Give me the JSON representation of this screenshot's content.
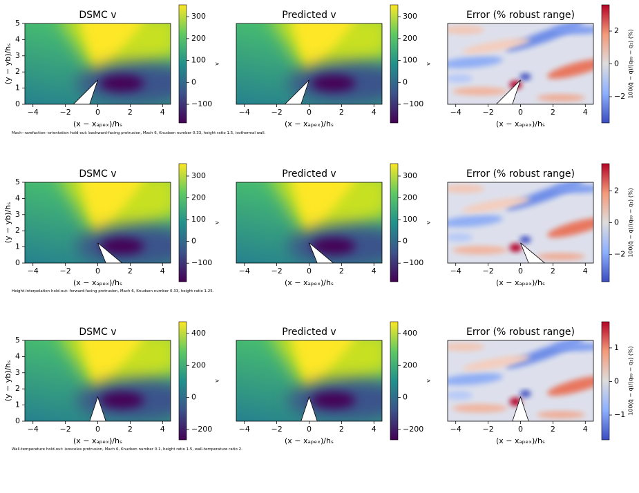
{
  "chart_data": [
    {
      "type": "heatmap",
      "title": "DSMC v",
      "xlabel": "(x − xₐₚₑₓ)/hₛ",
      "ylabel": "(y − yb)/hₛ",
      "xlim": [
        -4.5,
        4.5
      ],
      "xticks": [
        {
          "value": -4,
          "label": "−4"
        },
        {
          "value": -2,
          "label": "−2"
        },
        0,
        2,
        4
      ],
      "ylim": [
        0,
        5
      ],
      "yticks": [
        0,
        1,
        2,
        3,
        4,
        5
      ],
      "cmap": "viridis",
      "clim": [
        -185,
        354
      ],
      "cticks": [
        {
          "value": -100,
          "label": "−100"
        },
        0,
        100,
        200,
        300
      ],
      "clabel": "v"
    },
    {
      "type": "heatmap",
      "title": "Predicted v",
      "xlabel": "(x − xₐₚₑₓ)/hₛ",
      "xlim": [
        -4.5,
        4.5
      ],
      "xticks": [
        {
          "value": -4,
          "label": "−4"
        },
        {
          "value": -2,
          "label": "−2"
        },
        0,
        2,
        4
      ],
      "ylim": [
        0,
        5
      ],
      "cmap": "viridis",
      "clim": [
        -185,
        354
      ],
      "cticks": [
        {
          "value": -100,
          "label": "−100"
        },
        0,
        100,
        200,
        300
      ],
      "clabel": "v"
    },
    {
      "type": "heatmap",
      "title": "Error (% robust range)",
      "xlabel": "(x − xₐₚₑₓ)/hₛ",
      "xlim": [
        -4.5,
        4.5
      ],
      "xticks": [
        {
          "value": -4,
          "label": "−4"
        },
        {
          "value": -2,
          "label": "−2"
        },
        0,
        2,
        4
      ],
      "ylim": [
        0,
        5
      ],
      "cmap": "coolwarm",
      "clim": [
        -3.6,
        3.6
      ],
      "cticks": [
        {
          "value": -2,
          "label": "−2"
        },
        0,
        2
      ],
      "clabel": "100(q̂ − q)/(q₉₉ − q₁) (%)"
    },
    {
      "type": "heatmap",
      "title": "DSMC v",
      "xlabel": "(x − xₐₚₑₓ)/hₛ",
      "ylabel": "(y − yb)/hₛ",
      "xlim": [
        -4.5,
        4.5
      ],
      "xticks": [
        {
          "value": -4,
          "label": "−4"
        },
        {
          "value": -2,
          "label": "−2"
        },
        0,
        2,
        4
      ],
      "ylim": [
        0,
        5
      ],
      "yticks": [
        0,
        1,
        2,
        3,
        4,
        5
      ],
      "cmap": "viridis",
      "clim": [
        -185,
        357
      ],
      "cticks": [
        {
          "value": -100,
          "label": "−100"
        },
        0,
        100,
        200,
        300
      ],
      "clabel": "v"
    },
    {
      "type": "heatmap",
      "title": "Predicted v",
      "xlabel": "(x − xₐₚₑₓ)/hₛ",
      "xlim": [
        -4.5,
        4.5
      ],
      "xticks": [
        {
          "value": -4,
          "label": "−4"
        },
        {
          "value": -2,
          "label": "−2"
        },
        0,
        2,
        4
      ],
      "ylim": [
        0,
        5
      ],
      "cmap": "viridis",
      "clim": [
        -185,
        357
      ],
      "cticks": [
        {
          "value": -100,
          "label": "−100"
        },
        0,
        100,
        200,
        300
      ],
      "clabel": "v"
    },
    {
      "type": "heatmap",
      "title": "Error (% robust range)",
      "xlabel": "(x − xₐₚₑₓ)/hₛ",
      "xlim": [
        -4.5,
        4.5
      ],
      "xticks": [
        {
          "value": -4,
          "label": "−4"
        },
        {
          "value": -2,
          "label": "−2"
        },
        0,
        2,
        4
      ],
      "ylim": [
        0,
        5
      ],
      "cmap": "coolwarm",
      "clim": [
        -3.7,
        3.7
      ],
      "cticks": [
        {
          "value": -2,
          "label": "−2"
        },
        0,
        2
      ],
      "clabel": "100(q̂ − q)/(q₉₉ − q₁) (%)"
    },
    {
      "type": "heatmap",
      "title": "DSMC v",
      "xlabel": "(x − xₐₚₑₓ)/hₛ",
      "ylabel": "(y − yb)/hₛ",
      "xlim": [
        -4.5,
        4.5
      ],
      "xticks": [
        {
          "value": -4,
          "label": "−4"
        },
        {
          "value": -2,
          "label": "−2"
        },
        0,
        2,
        4
      ],
      "ylim": [
        0,
        5
      ],
      "yticks": [
        0,
        1,
        2,
        3,
        4,
        5
      ],
      "cmap": "viridis",
      "clim": [
        -265,
        473
      ],
      "cticks": [
        {
          "value": -200,
          "label": "−200"
        },
        0,
        200,
        400
      ],
      "clabel": "v"
    },
    {
      "type": "heatmap",
      "title": "Predicted v",
      "xlabel": "(x − xₐₚₑₓ)/hₛ",
      "xlim": [
        -4.5,
        4.5
      ],
      "xticks": [
        {
          "value": -4,
          "label": "−4"
        },
        {
          "value": -2,
          "label": "−2"
        },
        0,
        2,
        4
      ],
      "ylim": [
        0,
        5
      ],
      "cmap": "viridis",
      "clim": [
        -265,
        473
      ],
      "cticks": [
        {
          "value": -200,
          "label": "−200"
        },
        0,
        200,
        400
      ],
      "clabel": "v"
    },
    {
      "type": "heatmap",
      "title": "Error (% robust range)",
      "xlabel": "(x − xₐₚₑₓ)/hₛ",
      "xlim": [
        -4.5,
        4.5
      ],
      "xticks": [
        {
          "value": -4,
          "label": "−4"
        },
        {
          "value": -2,
          "label": "−2"
        },
        0,
        2,
        4
      ],
      "ylim": [
        0,
        5
      ],
      "cmap": "coolwarm",
      "clim": [
        -1.74,
        1.78
      ],
      "cticks": [
        {
          "value": -1,
          "label": "−1"
        },
        0,
        1
      ],
      "clabel": "100(q̂ − q)/(q₉₉ − q₁) (%)"
    }
  ],
  "captions": [
    "Mach--rarefaction--orientation hold-out: backward-facing protrusion, Mach 6, Knudsen number 0.33, height ratio 1.5, isothermal wall.",
    "Height-interpolation hold-out: forward-facing protrusion, Mach 6, Knudsen number 0.33, height ratio 1.25.",
    "Wall-temperature hold-out: isosceles protrusion, Mach 6, Knudsen number 0.1, height ratio 1.5, wall-temperature ratio 2."
  ]
}
